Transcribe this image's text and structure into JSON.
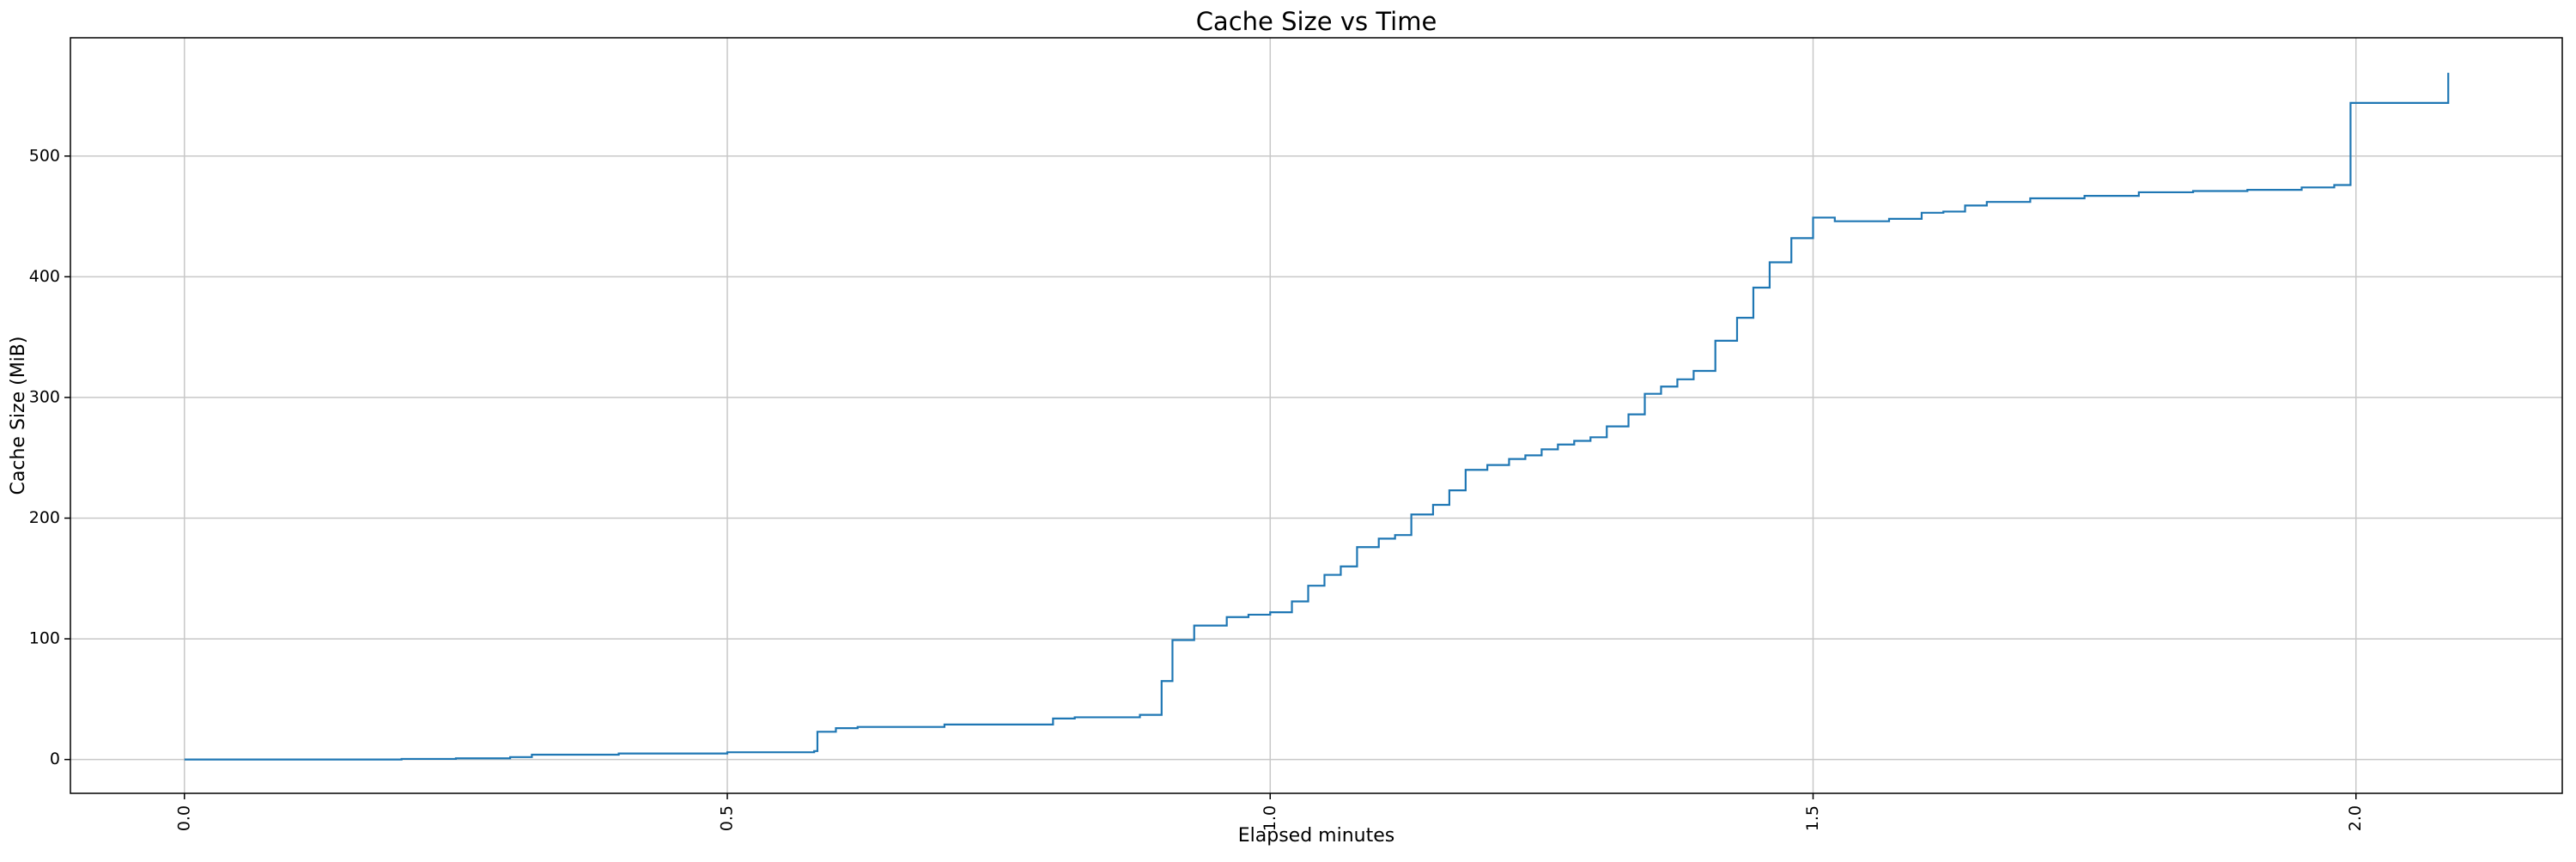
{
  "chart_data": {
    "type": "step",
    "title": "Cache Size vs Time",
    "xlabel": "Elapsed minutes",
    "ylabel": "Cache Size (MiB)",
    "color": "#1f77b4",
    "grid": true,
    "xlim": [
      -0.105,
      2.19
    ],
    "ylim": [
      -28,
      598
    ],
    "xticks": [
      {
        "value": 0,
        "label": "0.0"
      },
      0.5,
      {
        "value": 1,
        "label": "1.0"
      },
      1.5,
      {
        "value": 2,
        "label": "2.0"
      }
    ],
    "yticks": [
      0,
      100,
      200,
      300,
      400,
      500
    ],
    "x": [
      0,
      0.2,
      0.25,
      0.3,
      0.32,
      0.4,
      0.5,
      0.58,
      0.583,
      0.6,
      0.62,
      0.7,
      0.8,
      0.82,
      0.88,
      0.9,
      0.91,
      0.93,
      0.96,
      0.98,
      1.0,
      1.02,
      1.035,
      1.05,
      1.065,
      1.08,
      1.1,
      1.115,
      1.13,
      1.15,
      1.165,
      1.18,
      1.2,
      1.22,
      1.235,
      1.25,
      1.265,
      1.28,
      1.295,
      1.31,
      1.33,
      1.345,
      1.36,
      1.375,
      1.39,
      1.41,
      1.43,
      1.445,
      1.46,
      1.48,
      1.5,
      1.52,
      1.55,
      1.57,
      1.6,
      1.62,
      1.64,
      1.66,
      1.7,
      1.75,
      1.8,
      1.85,
      1.9,
      1.95,
      1.98,
      1.995,
      2.085
    ],
    "values": [
      0,
      0.5,
      1,
      2,
      4,
      5,
      6,
      7,
      23,
      26,
      27,
      29,
      34,
      35,
      37,
      65,
      99,
      111,
      118,
      120,
      122,
      131,
      144,
      153,
      160,
      176,
      183,
      186,
      203,
      211,
      223,
      240,
      244,
      249,
      252,
      257,
      261,
      264,
      267,
      276,
      286,
      303,
      309,
      315,
      322,
      347,
      366,
      391,
      412,
      432,
      449,
      446,
      446,
      448,
      453,
      454,
      459,
      462,
      465,
      467,
      470,
      471,
      472,
      474,
      476,
      544,
      569
    ]
  }
}
